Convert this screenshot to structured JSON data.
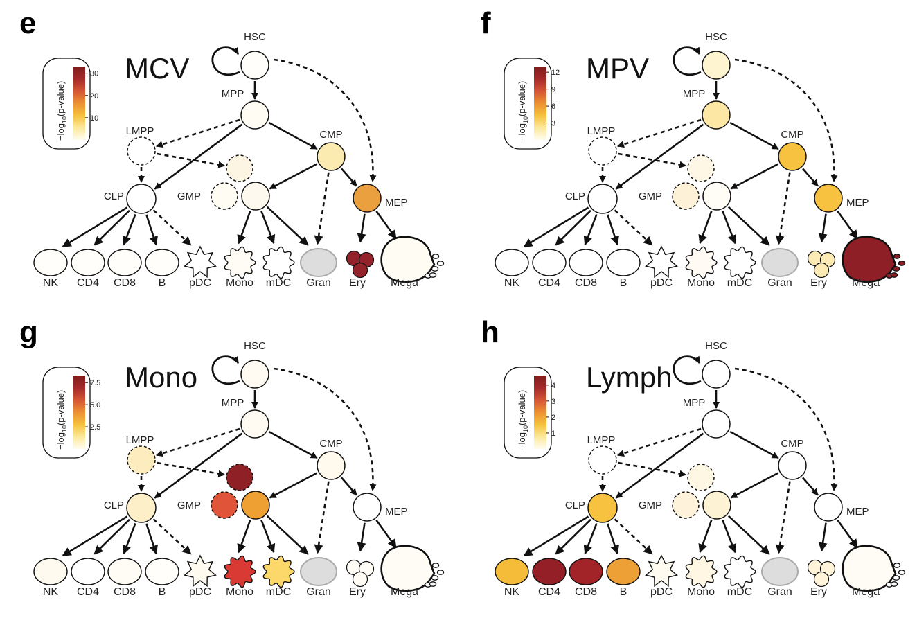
{
  "figure": {
    "legend_label": "−log",
    "legend_sub": "10",
    "legend_suffix": "(p-value)",
    "palette": [
      "#FFFDF0",
      "#FCE89A",
      "#F6C13C",
      "#EB9132",
      "#D45535",
      "#A42A2A",
      "#7F1D1D"
    ],
    "neutral_fill": "#FFFFFF",
    "gran_fill": "#DDDDDD",
    "gran_stroke": "#AAAAAA",
    "node_labels": {
      "HSC": "HSC",
      "MPP": "MPP",
      "LMPP": "LMPP",
      "CMP": "CMP",
      "CLP": "CLP",
      "GMP": "GMP",
      "MEP": "MEP"
    },
    "bottom_labels": {
      "NK": "NK",
      "CD4": "CD4",
      "CD8": "CD8",
      "B": "B",
      "pDC": "pDC",
      "Mono": "Mono",
      "mDC": "mDC",
      "Gran": "Gran",
      "Ery": "Ery",
      "Mega": "Mega"
    }
  },
  "panels": [
    {
      "letter": "e",
      "title": "MCV",
      "max": 33,
      "ticks": [
        {
          "label": "30",
          "value": 30
        },
        {
          "label": "20",
          "value": 20
        },
        {
          "label": "10",
          "value": 10
        }
      ],
      "colors": {
        "HSC": "#FFFEFA",
        "MPP": "#FFFCF4",
        "LMPP": "#FFFFFF",
        "CMP": "#FCEBB0",
        "CLP": "#FFFFFF",
        "GMP1": "#FDF5E4",
        "GMP2": "#FFFCF4",
        "GMP3": "#FEF9EE",
        "MEP": "#EBA040",
        "NK": "#FFFEFA",
        "CD4": "#FFFEFA",
        "CD8": "#FFFEFA",
        "B": "#FFFEFA",
        "pDC": "#FFFFFF",
        "Mono": "#FFFCF5",
        "mDC": "#FFFFFF",
        "Ery": "#93222A",
        "Mega": "#FFFCF4"
      }
    },
    {
      "letter": "f",
      "title": "MPV",
      "max": 13,
      "ticks": [
        {
          "label": "12",
          "value": 12
        },
        {
          "label": "9",
          "value": 9
        },
        {
          "label": "6",
          "value": 6
        },
        {
          "label": "3",
          "value": 3
        }
      ],
      "colors": {
        "HSC": "#FEF4CF",
        "MPP": "#FCE8A4",
        "LMPP": "#FFFFFF",
        "CMP": "#F6C23F",
        "CLP": "#FFFFFF",
        "GMP1": "#FEF7E6",
        "GMP2": "#FDF1D8",
        "GMP3": "#FFFDF6",
        "MEP": "#F6C23F",
        "NK": "#FFFFFF",
        "CD4": "#FFFFFF",
        "CD8": "#FFFFFF",
        "B": "#FFFFFF",
        "pDC": "#FFFFFF",
        "Mono": "#FFFBF4",
        "mDC": "#FFFFFF",
        "Ery": "#FDEBB6",
        "Mega": "#8E1F26"
      }
    },
    {
      "letter": "g",
      "title": "Mono",
      "max": 8.3,
      "ticks": [
        {
          "label": "7.5",
          "value": 7.5
        },
        {
          "label": "5.0",
          "value": 5.0
        },
        {
          "label": "2.5",
          "value": 2.5
        }
      ],
      "colors": {
        "HSC": "#FFFBF2",
        "MPP": "#FFFBF2",
        "LMPP": "#FDEDBE",
        "CMP": "#FFF9EE",
        "CLP": "#FDF0C8",
        "GMP1": "#8F2126",
        "GMP2": "#E0553A",
        "GMP3": "#EEA032",
        "MEP": "#FFFFFF",
        "NK": "#FFFAF0",
        "CD4": "#FFFFFF",
        "CD8": "#FFFCF6",
        "B": "#FFFEFB",
        "pDC": "#FFFAF0",
        "Mono": "#D93A34",
        "mDC": "#FCD86A",
        "Ery": "#FFFCF6",
        "Mega": "#FFFCF6"
      }
    },
    {
      "letter": "h",
      "title": "Lymph",
      "max": 4.6,
      "ticks": [
        {
          "label": "4",
          "value": 4
        },
        {
          "label": "3",
          "value": 3
        },
        {
          "label": "2",
          "value": 2
        },
        {
          "label": "1",
          "value": 1
        }
      ],
      "colors": {
        "HSC": "#FFFFFF",
        "MPP": "#FFFFFF",
        "LMPP": "#FFFFFF",
        "CMP": "#FFFFFF",
        "CLP": "#F6C23F",
        "GMP1": "#FEF7E4",
        "GMP2": "#FEF3DA",
        "GMP3": "#FEF2D4",
        "MEP": "#FFFFFF",
        "NK": "#F5BC3A",
        "CD4": "#951F26",
        "CD8": "#A22428",
        "B": "#EDA036",
        "pDC": "#FFFBF1",
        "Mono": "#FFF6E4",
        "mDC": "#FFFFFF",
        "Ery": "#FFF4DA",
        "Mega": "#FFFCF6"
      }
    }
  ]
}
